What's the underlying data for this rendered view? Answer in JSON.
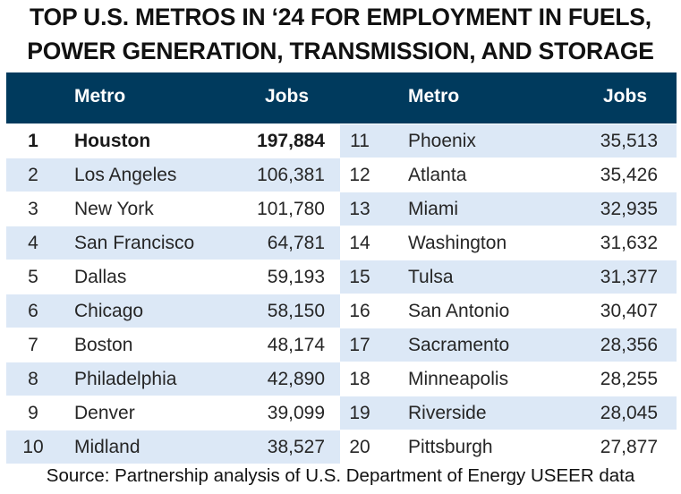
{
  "title_lines": [
    "TOP U.S. METROS IN ‘24 FOR EMPLOYMENT IN FUELS,",
    "POWER GENERATION, TRANSMISSION, AND STORAGE"
  ],
  "source": "Source: Partnership analysis of U.S. Department of Energy USEER data",
  "colors": {
    "header_bg": "#003A5D",
    "row_shade": "#DCE8F6"
  },
  "chart_data": {
    "type": "table",
    "columns": [
      "",
      "Metro",
      "Jobs"
    ],
    "rows": [
      {
        "rank": "1",
        "metro": "Houston",
        "jobs": "197,884",
        "bold": true
      },
      {
        "rank": "2",
        "metro": "Los Angeles",
        "jobs": "106,381"
      },
      {
        "rank": "3",
        "metro": "New York",
        "jobs": "101,780"
      },
      {
        "rank": "4",
        "metro": "San Francisco",
        "jobs": "64,781"
      },
      {
        "rank": "5",
        "metro": "Dallas",
        "jobs": "59,193"
      },
      {
        "rank": "6",
        "metro": "Chicago",
        "jobs": "58,150"
      },
      {
        "rank": "7",
        "metro": "Boston",
        "jobs": "48,174"
      },
      {
        "rank": "8",
        "metro": "Philadelphia",
        "jobs": "42,890"
      },
      {
        "rank": "9",
        "metro": "Denver",
        "jobs": "39,099"
      },
      {
        "rank": "10",
        "metro": "Midland",
        "jobs": "38,527"
      },
      {
        "rank": "11",
        "metro": "Phoenix",
        "jobs": "35,513"
      },
      {
        "rank": "12",
        "metro": "Atlanta",
        "jobs": "35,426"
      },
      {
        "rank": "13",
        "metro": "Miami",
        "jobs": "32,935"
      },
      {
        "rank": "14",
        "metro": "Washington",
        "jobs": "31,632"
      },
      {
        "rank": "15",
        "metro": "Tulsa",
        "jobs": "31,377"
      },
      {
        "rank": "16",
        "metro": "San Antonio",
        "jobs": "30,407"
      },
      {
        "rank": "17",
        "metro": "Sacramento",
        "jobs": "28,356"
      },
      {
        "rank": "18",
        "metro": "Minneapolis",
        "jobs": "28,255"
      },
      {
        "rank": "19",
        "metro": "Riverside",
        "jobs": "28,045"
      },
      {
        "rank": "20",
        "metro": "Pittsburgh",
        "jobs": "27,877"
      }
    ]
  }
}
